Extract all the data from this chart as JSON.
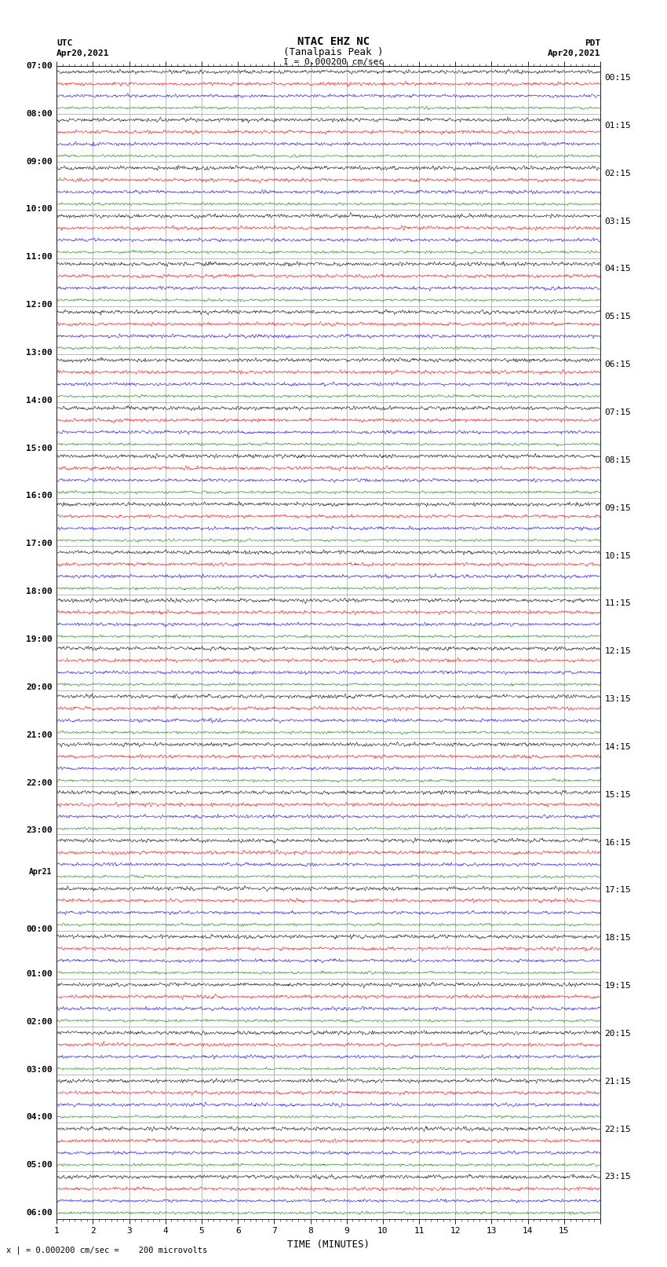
{
  "title_line1": "NTAC EHZ NC",
  "title_line2": "(Tanalpais Peak )",
  "title_line3": "I = 0.000200 cm/sec",
  "left_header_line1": "UTC",
  "left_header_line2": "Apr20,2021",
  "right_header_line1": "PDT",
  "right_header_line2": "Apr20,2021",
  "bottom_label": "TIME (MINUTES)",
  "bottom_note": "x | = 0.000200 cm/sec =    200 microvolts",
  "trace_colors": [
    "black",
    "red",
    "blue",
    "green"
  ],
  "xlim": [
    0,
    15
  ],
  "n_traces_total": 96,
  "traces_per_hour": 4,
  "left_labels": [
    "07:00",
    "08:00",
    "09:00",
    "10:00",
    "11:00",
    "12:00",
    "13:00",
    "14:00",
    "15:00",
    "16:00",
    "17:00",
    "18:00",
    "19:00",
    "20:00",
    "21:00",
    "22:00",
    "23:00",
    "Apr21",
    "00:00",
    "01:00",
    "02:00",
    "03:00",
    "04:00",
    "05:00",
    "06:00"
  ],
  "right_labels": [
    "00:15",
    "01:15",
    "02:15",
    "03:15",
    "04:15",
    "05:15",
    "06:15",
    "07:15",
    "08:15",
    "09:15",
    "10:15",
    "11:15",
    "12:15",
    "13:15",
    "14:15",
    "15:15",
    "16:15",
    "17:15",
    "18:15",
    "19:15",
    "20:15",
    "21:15",
    "22:15",
    "23:15"
  ],
  "background_color": "white",
  "noise_amplitude": 0.12,
  "seed": 42,
  "n_points": 1800
}
